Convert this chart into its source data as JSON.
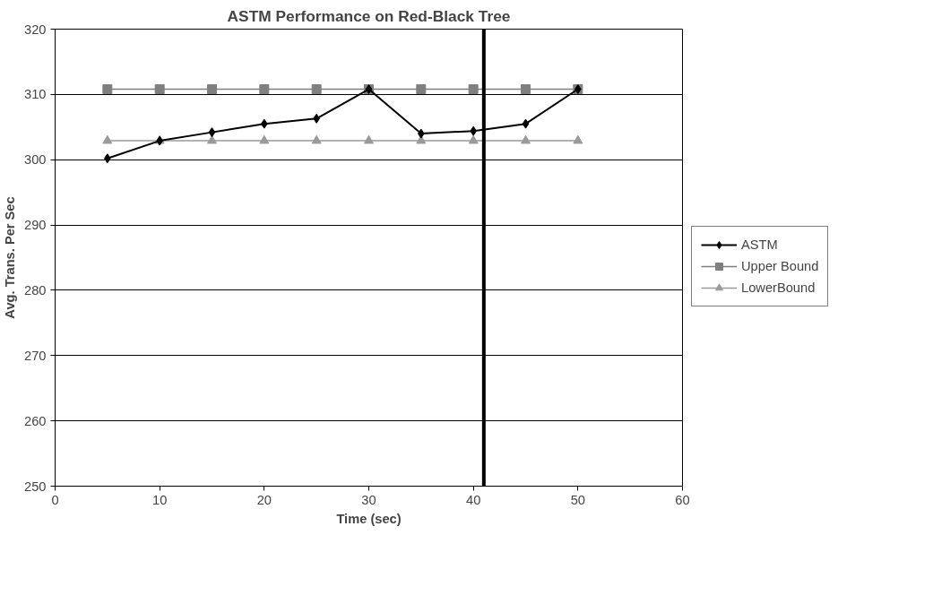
{
  "chart_data": {
    "type": "line",
    "title": "ASTM Performance on Red-Black Tree",
    "xlabel": "Time (sec)",
    "ylabel": "Avg. Trans. Per Sec",
    "x": [
      5,
      10,
      15,
      20,
      25,
      30,
      35,
      40,
      45,
      50
    ],
    "series": [
      {
        "name": "ASTM",
        "color": "#000000",
        "marker": "diamond",
        "values": [
          300.2,
          302.9,
          304.2,
          305.5,
          306.3,
          310.8,
          304.0,
          304.4,
          305.5,
          310.8
        ]
      },
      {
        "name": "Upper Bound",
        "color": "#7f7f7f",
        "marker": "square",
        "values": [
          310.8,
          310.8,
          310.8,
          310.8,
          310.8,
          310.8,
          310.8,
          310.8,
          310.8,
          310.8
        ]
      },
      {
        "name": "LowerBound",
        "color": "#9a9a9a",
        "marker": "triangle",
        "values": [
          302.9,
          302.9,
          302.9,
          302.9,
          302.9,
          302.9,
          302.9,
          302.9,
          302.9,
          302.9
        ]
      }
    ],
    "xlim": [
      0,
      60
    ],
    "xticks": [
      0,
      10,
      20,
      30,
      40,
      50,
      60
    ],
    "ylim": [
      250,
      320
    ],
    "yticks": [
      250,
      260,
      270,
      280,
      290,
      300,
      310,
      320
    ],
    "ref_lines": [
      {
        "axis": "x",
        "value": 41,
        "color": "#000000"
      }
    ],
    "grid": "y",
    "legend": "right",
    "line_style": "solid"
  }
}
